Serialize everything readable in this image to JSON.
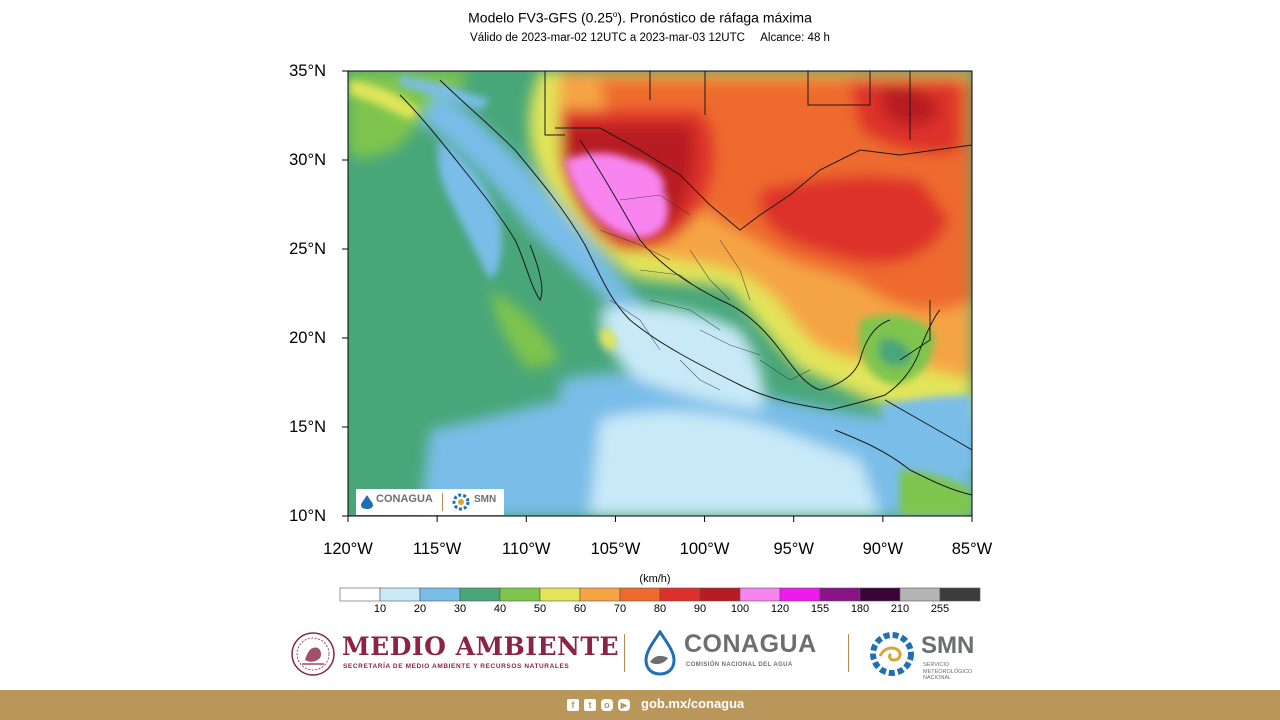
{
  "header": {
    "title_main": "Modelo FV3-GFS (0.25",
    "title_sup": "o",
    "title_end": "). Pronóstico de ráfaga máxima",
    "subtitle": "Válido de 2023-mar-02 12UTC a 2023-mar-03 12UTC     Alcance: 48 h"
  },
  "map": {
    "lat_labels": [
      "35°N",
      "30°N",
      "25°N",
      "20°N",
      "15°N",
      "10°N"
    ],
    "lon_labels": [
      "120°W",
      "115°W",
      "110°W",
      "105°W",
      "100°W",
      "95°W",
      "90°W",
      "85°W"
    ],
    "lat_range": [
      10,
      35
    ],
    "lon_range": [
      -120,
      -85
    ],
    "inset_logo": {
      "conagua": "CONAGUA",
      "smn": "SMN"
    }
  },
  "colorbar": {
    "units": "(km/h)",
    "ticks": [
      "10",
      "20",
      "30",
      "40",
      "50",
      "60",
      "70",
      "80",
      "90",
      "100",
      "120",
      "155",
      "180",
      "210",
      "255"
    ],
    "colors": [
      "#ffffff",
      "#c8e9f8",
      "#79bde8",
      "#48a679",
      "#7ec54e",
      "#e2e55a",
      "#f5a445",
      "#ee6a2d",
      "#dd302a",
      "#b71c24",
      "#f884ef",
      "#ee1aee",
      "#881488",
      "#3a0438",
      "#b4b4b4",
      "#3c3c3c"
    ]
  },
  "logos": {
    "medio_ambiente": "MEDIO AMBIENTE",
    "medio_ambiente_sub": "SECRETARÍA DE MEDIO AMBIENTE Y RECURSOS NATURALES",
    "conagua": "CONAGUA",
    "conagua_sub": "COMISIÓN NACIONAL DEL AGUA",
    "smn": "SMN",
    "smn_sub": "SERVICIO METEOROLÓGICO NACIONAL"
  },
  "footer": {
    "url": "gob.mx/conagua",
    "icons": [
      "facebook-icon",
      "twitter-icon",
      "instagram-icon",
      "youtube-icon"
    ]
  }
}
